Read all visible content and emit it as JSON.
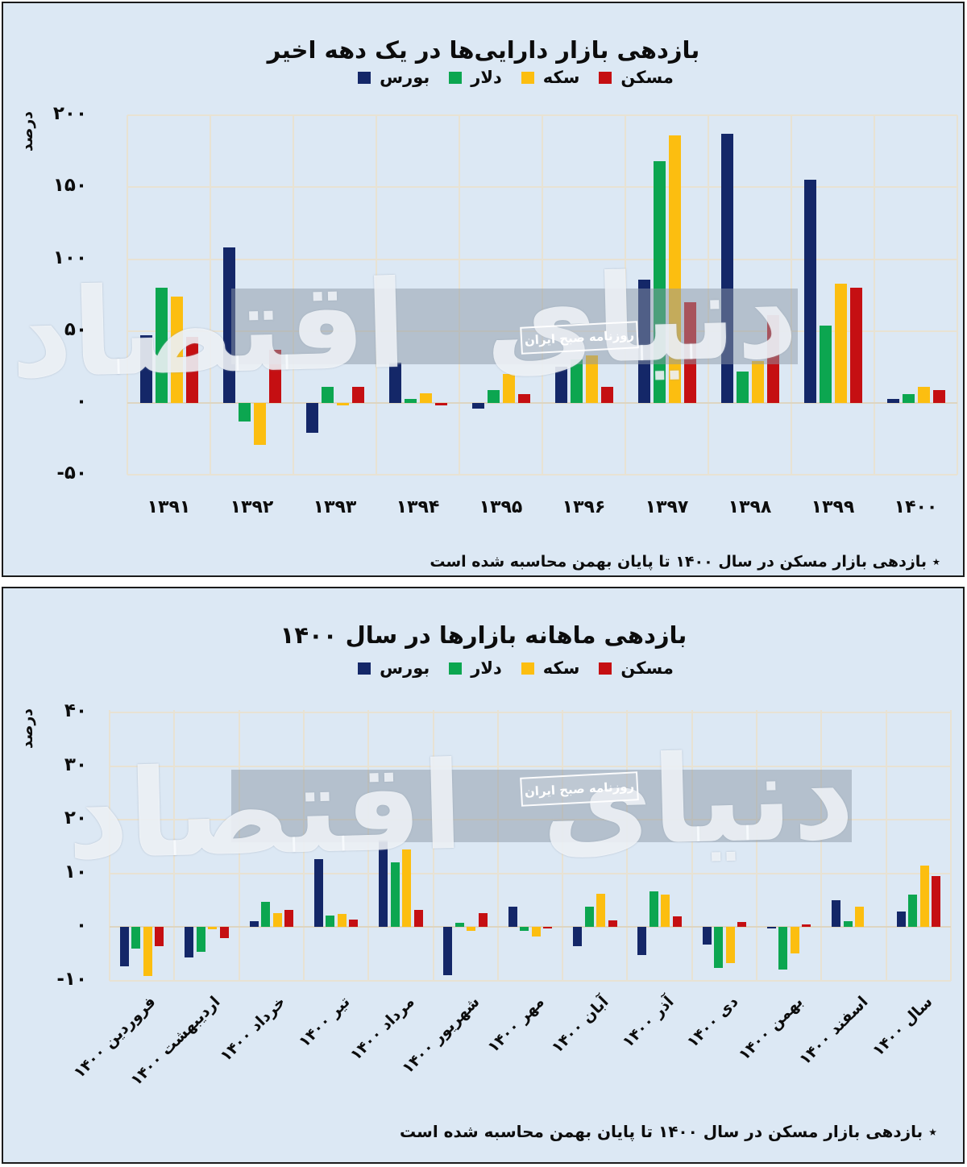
{
  "watermark": {
    "script": "دنیای اقتصاد",
    "label": "روزنامه صبح ایران"
  },
  "colors": {
    "background": "#dce8f4",
    "panel_border": "#1b1b1b",
    "grid": "#e8e2d3",
    "bourse": "#142768",
    "dollar": "#0ca650",
    "coin": "#fcbe10",
    "housing": "#c50f12",
    "watermark_band": "#8b97a5"
  },
  "legend": [
    {
      "key": "bourse",
      "label": "بورس",
      "color": "#142768"
    },
    {
      "key": "dollar",
      "label": "دلار",
      "color": "#0ca650"
    },
    {
      "key": "coin",
      "label": "سکه",
      "color": "#fcbe10"
    },
    {
      "key": "housing",
      "label": "مسکن",
      "color": "#c50f12"
    }
  ],
  "panels": [
    {
      "title": "بازدهی بازار دارایی‌ها در یک دهه اخیر",
      "ylabel": "درصد",
      "footnote": "٭ بازدهی بازار مسکن در سال ۱۴۰۰ تا پایان بهمن محاسبه شده است"
    },
    {
      "title": "بازدهی ماهانه بازارها در سال ۱۴۰۰",
      "ylabel": "درصد",
      "footnote": "٭ بازدهی بازار مسکن در سال ۱۴۰۰ تا پایان بهمن محاسبه شده است"
    }
  ],
  "chart_data": [
    {
      "type": "bar",
      "title": "بازدهی بازار دارایی‌ها در یک دهه اخیر",
      "xlabel": "",
      "ylabel": "درصد",
      "ylim": [
        -50,
        200
      ],
      "grid": true,
      "legend_position": "top",
      "yticks": [
        {
          "v": 200,
          "label": "۲۰۰"
        },
        {
          "v": 150,
          "label": "۱۵۰"
        },
        {
          "v": 100,
          "label": "۱۰۰"
        },
        {
          "v": 50,
          "label": "۵۰"
        },
        {
          "v": 0,
          "label": "۰"
        },
        {
          "v": -50,
          "label": "-۵۰"
        }
      ],
      "categories": [
        "۱۳۹۱",
        "۱۳۹۲",
        "۱۳۹۳",
        "۱۳۹۴",
        "۱۳۹۵",
        "۱۳۹۶",
        "۱۳۹۷",
        "۱۳۹۸",
        "۱۳۹۹",
        "۱۴۰۰"
      ],
      "series": [
        {
          "key": "bourse",
          "name": "بورس",
          "color": "#142768",
          "values": [
            47,
            108,
            -21,
            28,
            -4,
            25,
            86,
            187,
            155,
            3
          ]
        },
        {
          "key": "dollar",
          "name": "دلار",
          "color": "#0ca650",
          "values": [
            80,
            -13,
            11,
            3,
            9,
            30,
            168,
            22,
            54,
            6
          ]
        },
        {
          "key": "coin",
          "name": "سکه",
          "color": "#fcbe10",
          "values": [
            74,
            -29,
            -1.5,
            7,
            20,
            33,
            186,
            29,
            83,
            11
          ]
        },
        {
          "key": "housing",
          "name": "مسکن",
          "color": "#c50f12",
          "values": [
            46,
            37,
            11,
            -1.5,
            6,
            11,
            70,
            61,
            80,
            9
          ]
        }
      ]
    },
    {
      "type": "bar",
      "title": "بازدهی ماهانه بازارها در سال ۱۴۰۰",
      "xlabel": "",
      "ylabel": "درصد",
      "ylim": [
        -10,
        40
      ],
      "grid": true,
      "legend_position": "top",
      "yticks": [
        {
          "v": 40,
          "label": "۴۰"
        },
        {
          "v": 30,
          "label": "۳۰"
        },
        {
          "v": 20,
          "label": "۲۰"
        },
        {
          "v": 10,
          "label": "۱۰"
        },
        {
          "v": 0,
          "label": "۰"
        },
        {
          "v": -10,
          "label": "-۱۰"
        }
      ],
      "categories": [
        "فروردین ۱۴۰۰",
        "اردیبهشت ۱۴۰۰",
        "خرداد ۱۴۰۰",
        "تیر ۱۴۰۰",
        "مرداد ۱۴۰۰",
        "شهریور ۱۴۰۰",
        "مهر ۱۴۰۰",
        "آبان ۱۴۰۰",
        "آذر ۱۴۰۰",
        "دی ۱۴۰۰",
        "بهمن ۱۴۰۰",
        "اسفند ۱۴۰۰",
        "سال ۱۴۰۰"
      ],
      "series": [
        {
          "key": "bourse",
          "name": "بورس",
          "color": "#142768",
          "values": [
            -7.3,
            -5.7,
            1.1,
            12.7,
            16.1,
            -9.0,
            3.8,
            -3.6,
            -5.2,
            -3.3,
            -0.3,
            4.9,
            2.9
          ]
        },
        {
          "key": "dollar",
          "name": "دلار",
          "color": "#0ca650",
          "values": [
            -4.1,
            -4.6,
            4.7,
            2.1,
            12.0,
            0.7,
            -0.8,
            3.7,
            6.6,
            -7.6,
            -7.9,
            1.1,
            6.0
          ]
        },
        {
          "key": "coin",
          "name": "سکه",
          "color": "#fcbe10",
          "values": [
            -9.1,
            -0.4,
            2.5,
            2.4,
            14.4,
            -0.7,
            -1.8,
            6.2,
            6.0,
            -6.7,
            -5.0,
            3.7,
            11.5
          ]
        },
        {
          "key": "housing",
          "name": "مسکن",
          "color": "#c50f12",
          "values": [
            -3.6,
            -2.1,
            3.2,
            1.3,
            3.2,
            2.5,
            -0.2,
            1.2,
            1.9,
            0.9,
            0.4,
            null,
            9.4
          ]
        }
      ]
    }
  ]
}
